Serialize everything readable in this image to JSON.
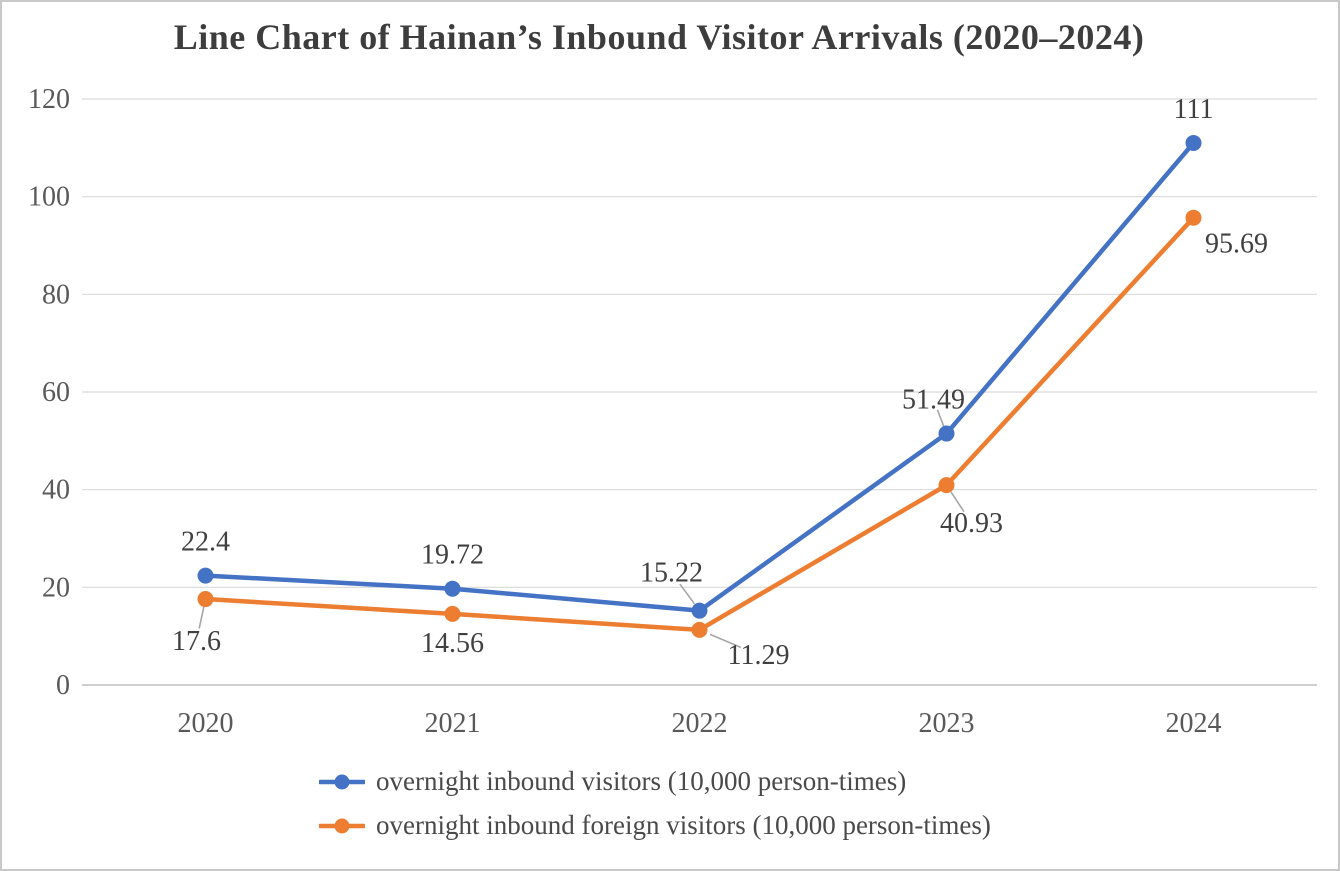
{
  "chart_data": {
    "type": "line",
    "title": "Line Chart of Hainan’s Inbound Visitor Arrivals (2020–2024)",
    "categories": [
      "2020",
      "2021",
      "2022",
      "2023",
      "2024"
    ],
    "series": [
      {
        "name": "overnight inbound visitors (10,000 person-times)",
        "color": "#4472C4",
        "values": [
          22.4,
          19.72,
          15.22,
          51.49,
          111
        ],
        "labels": [
          "22.4",
          "19.72",
          "15.22",
          "51.49",
          "111"
        ],
        "label_offsets": [
          [
            0,
            -25
          ],
          [
            0,
            -25
          ],
          [
            -28,
            -29
          ],
          [
            -13,
            -25
          ],
          [
            0,
            -25
          ]
        ],
        "label_leaders": [
          false,
          false,
          true,
          true,
          false
        ]
      },
      {
        "name": "overnight inbound foreign visitors (10,000 person-times)",
        "color": "#ED7D31",
        "values": [
          17.6,
          14.56,
          11.29,
          40.93,
          95.69
        ],
        "labels": [
          "17.6",
          "14.56",
          "11.29",
          "40.93",
          "95.69"
        ],
        "label_offsets": [
          [
            -9,
            51
          ],
          [
            0,
            38
          ],
          [
            59,
            34
          ],
          [
            25,
            47
          ],
          [
            43,
            35
          ]
        ],
        "label_leaders": [
          true,
          false,
          true,
          true,
          false
        ]
      }
    ],
    "ylim": [
      0,
      120
    ],
    "yticks": [
      0,
      20,
      40,
      60,
      80,
      100,
      120
    ],
    "grid": true,
    "legend_position": "bottom-left",
    "colors": {
      "gridline": "#d9d9d9",
      "axis_line": "#bfbfbf",
      "tick_label": "#595959",
      "data_label": "#404040",
      "leader_line": "#a6a6a6",
      "title_text": "#3d3d3d",
      "legend_text": "#4a4a4a",
      "frame_border": "#c8c8c8"
    }
  }
}
